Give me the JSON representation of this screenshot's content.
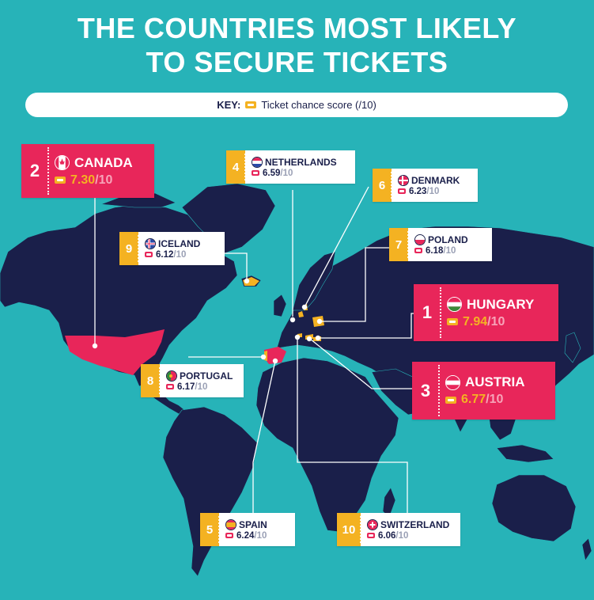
{
  "title_line1": "THE COUNTRIES MOST LIKELY",
  "title_line2": "TO SECURE TICKETS",
  "key": {
    "label": "KEY:",
    "text": "Ticket chance score (/10)",
    "icon": "ticket-icon"
  },
  "denominator": "/10",
  "colors": {
    "ocean": "#27b3b8",
    "land": "#1a1f4a",
    "highlight": "#e8265a",
    "accent": "#f4b222",
    "card": "#ffffff"
  },
  "countries": [
    {
      "rank": "2",
      "name": "CANADA",
      "score": "7.30",
      "flag": "canada-flag-icon"
    },
    {
      "rank": "4",
      "name": "NETHERLANDS",
      "score": "6.59",
      "flag": "netherlands-flag-icon"
    },
    {
      "rank": "6",
      "name": "DENMARK",
      "score": "6.23",
      "flag": "denmark-flag-icon"
    },
    {
      "rank": "9",
      "name": "ICELAND",
      "score": "6.12",
      "flag": "iceland-flag-icon"
    },
    {
      "rank": "7",
      "name": "POLAND",
      "score": "6.18",
      "flag": "poland-flag-icon"
    },
    {
      "rank": "1",
      "name": "HUNGARY",
      "score": "7.94",
      "flag": "hungary-flag-icon"
    },
    {
      "rank": "8",
      "name": "PORTUGAL",
      "score": "6.17",
      "flag": "portugal-flag-icon"
    },
    {
      "rank": "3",
      "name": "AUSTRIA",
      "score": "6.77",
      "flag": "austria-flag-icon"
    },
    {
      "rank": "5",
      "name": "SPAIN",
      "score": "6.24",
      "flag": "spain-flag-icon"
    },
    {
      "rank": "10",
      "name": "SWITZERLAND",
      "score": "6.06",
      "flag": "switzerland-flag-icon"
    }
  ]
}
